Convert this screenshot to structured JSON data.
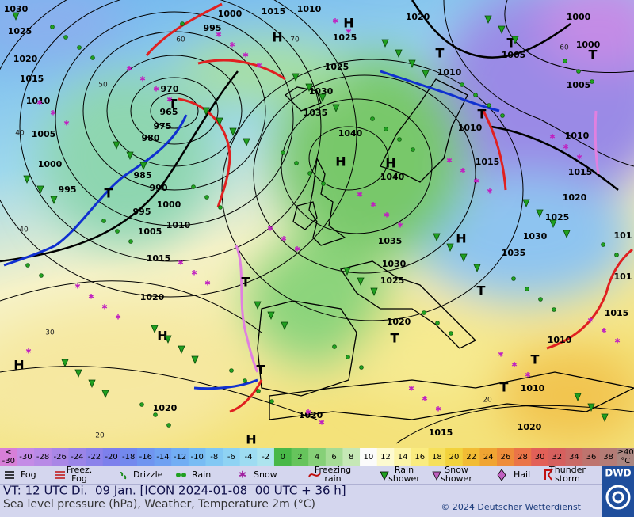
{
  "map": {
    "pressure_labels": [
      "1030",
      "1000",
      "1015",
      "1010",
      "1020",
      "1000",
      "1025",
      "995",
      "1025",
      "1005",
      "1000",
      "1020",
      "1025",
      "1010",
      "1005",
      "1015",
      "970",
      "1030",
      "1010",
      "965",
      "1035",
      "1010",
      "1010",
      "1005",
      "975",
      "980",
      "1040",
      "1000",
      "985",
      "1015",
      "1015",
      "995",
      "990",
      "1040",
      "1020",
      "1000",
      "995",
      "1025",
      "1010",
      "1005",
      "1030",
      "1035",
      "101",
      "1015",
      "1035",
      "1030",
      "1025",
      "101",
      "1020",
      "1015",
      "1020",
      "1010",
      "1010",
      "1020",
      "1020",
      "1015",
      "1020"
    ],
    "pressure_centers": [
      "H",
      "H",
      "T",
      "T",
      "T",
      "H",
      "H",
      "T",
      "T",
      "T",
      "H",
      "T",
      "H",
      "H",
      "T",
      "T",
      "T",
      "T",
      "H",
      "T"
    ],
    "temperature_labels": [
      "60",
      "70",
      "50",
      "40",
      "40",
      "30",
      "60",
      "20",
      "20"
    ]
  },
  "temperature_scale": {
    "cells": [
      {
        "lines": [
          "<",
          "-30"
        ],
        "color": "#d77fd8"
      },
      {
        "lines": [
          "-30"
        ],
        "color": "#c48be6"
      },
      {
        "lines": [
          "-28"
        ],
        "color": "#b88ae6"
      },
      {
        "lines": [
          "-26"
        ],
        "color": "#a987e6"
      },
      {
        "lines": [
          "-24"
        ],
        "color": "#9a84e8"
      },
      {
        "lines": [
          "-22"
        ],
        "color": "#8b82ea"
      },
      {
        "lines": [
          "-20"
        ],
        "color": "#7d80ec"
      },
      {
        "lines": [
          "-18"
        ],
        "color": "#7389ee"
      },
      {
        "lines": [
          "-16"
        ],
        "color": "#6f95f0"
      },
      {
        "lines": [
          "-14"
        ],
        "color": "#6fa1f2"
      },
      {
        "lines": [
          "-12"
        ],
        "color": "#72aef4"
      },
      {
        "lines": [
          "-10"
        ],
        "color": "#78bcf4"
      },
      {
        "lines": [
          "-8"
        ],
        "color": "#82c8f4"
      },
      {
        "lines": [
          "-6"
        ],
        "color": "#8fd3f4"
      },
      {
        "lines": [
          "-4"
        ],
        "color": "#9edcf2"
      },
      {
        "lines": [
          "-2"
        ],
        "color": "#ade4ee"
      },
      {
        "lines": [
          "0"
        ],
        "color": "#48b848"
      },
      {
        "lines": [
          "2"
        ],
        "color": "#66c45c"
      },
      {
        "lines": [
          "4"
        ],
        "color": "#86d078"
      },
      {
        "lines": [
          "6"
        ],
        "color": "#a6dc96"
      },
      {
        "lines": [
          "8"
        ],
        "color": "#c6e8b6"
      },
      {
        "lines": [
          "10"
        ],
        "color": "#fbfbfb"
      },
      {
        "lines": [
          "12"
        ],
        "color": "#fdfad0"
      },
      {
        "lines": [
          "14"
        ],
        "color": "#fcf4a8"
      },
      {
        "lines": [
          "16"
        ],
        "color": "#faec80"
      },
      {
        "lines": [
          "18"
        ],
        "color": "#f6e05c"
      },
      {
        "lines": [
          "20"
        ],
        "color": "#f2d23c"
      },
      {
        "lines": [
          "22"
        ],
        "color": "#f2bc34"
      },
      {
        "lines": [
          "24"
        ],
        "color": "#f0a432"
      },
      {
        "lines": [
          "26"
        ],
        "color": "#ee8c3a"
      },
      {
        "lines": [
          "28"
        ],
        "color": "#ea7448"
      },
      {
        "lines": [
          "30"
        ],
        "color": "#e26058"
      },
      {
        "lines": [
          "32"
        ],
        "color": "#d6605e"
      },
      {
        "lines": [
          "34"
        ],
        "color": "#ca6a66"
      },
      {
        "lines": [
          "36"
        ],
        "color": "#be746e"
      },
      {
        "lines": [
          "38"
        ],
        "color": "#b47c76"
      },
      {
        "lines": [
          "≥40",
          "°C"
        ],
        "color": "#aa8680"
      }
    ]
  },
  "weather_legend": [
    {
      "lines": [
        "Fog"
      ]
    },
    {
      "lines": [
        "Freez.",
        "Fog"
      ]
    },
    {
      "lines": [
        "Drizzle"
      ]
    },
    {
      "lines": [
        "Rain"
      ]
    },
    {
      "lines": [
        "Snow"
      ]
    },
    {
      "lines": [
        "Freezing",
        "rain"
      ]
    },
    {
      "lines": [
        "Rain",
        "shower"
      ]
    },
    {
      "lines": [
        "Snow",
        "shower"
      ]
    },
    {
      "lines": [
        "Hail"
      ]
    },
    {
      "lines": [
        "Thunder",
        "storm"
      ]
    }
  ],
  "footer": {
    "valid_time": "VT: 12 UTC Di.  09 Jan. [ICON 2024-01-08  00 UTC + 36 h]",
    "description": "Sea level pressure (hPa), Weather, Temperature 2m (°C)",
    "copyright": "© 2024 Deutscher Wetterdienst",
    "logo": "DWD"
  }
}
